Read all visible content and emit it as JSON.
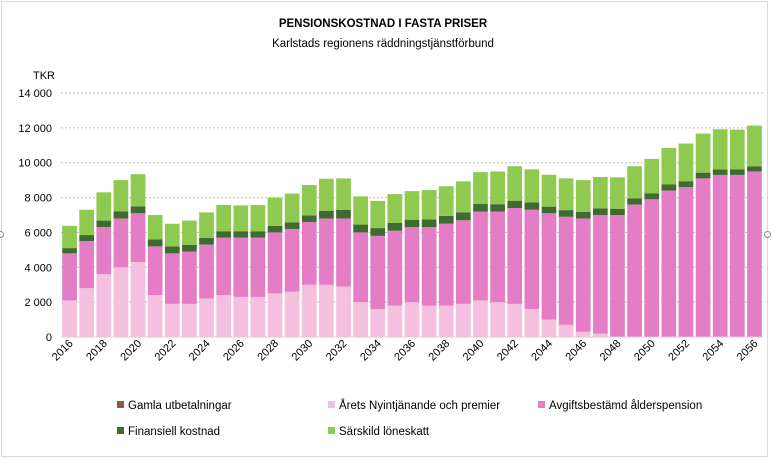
{
  "chart_data": {
    "type": "bar",
    "stacked": true,
    "title": "PENSIONSKOSTNAD I FASTA PRISER",
    "subtitle": "Karlstads regionens räddningstjänstförbund",
    "ylabel": "TKR",
    "xlabel": "",
    "ylim": [
      0,
      14000
    ],
    "yticks": [
      0,
      2000,
      4000,
      6000,
      8000,
      10000,
      12000,
      14000
    ],
    "ytick_labels": [
      "0",
      "2 000",
      "4 000",
      "6 000",
      "8 000",
      "10 000",
      "12 000",
      "14 000"
    ],
    "grid": true,
    "legend_position": "bottom",
    "categories": [
      "2016",
      "2017",
      "2018",
      "2019",
      "2020",
      "2021",
      "2022",
      "2023",
      "2024",
      "2025",
      "2026",
      "2027",
      "2028",
      "2029",
      "2030",
      "2031",
      "2032",
      "2033",
      "2034",
      "2035",
      "2036",
      "2037",
      "2038",
      "2039",
      "2040",
      "2041",
      "2042",
      "2043",
      "2044",
      "2045",
      "2046",
      "2047",
      "2048",
      "2049",
      "2050",
      "2051",
      "2052",
      "2053",
      "2054",
      "2055",
      "2056"
    ],
    "xtick_labels": [
      "2016",
      "2018",
      "2020",
      "2022",
      "2024",
      "2026",
      "2028",
      "2030",
      "2032",
      "2034",
      "2036",
      "2038",
      "2040",
      "2042",
      "2044",
      "2046",
      "2048",
      "2050",
      "2052",
      "2054",
      "2056"
    ],
    "series": [
      {
        "name": "Gamla utbetalningar",
        "color": "#8c5a46",
        "values": [
          0,
          0,
          0,
          0,
          0,
          0,
          0,
          0,
          0,
          0,
          0,
          0,
          0,
          0,
          0,
          0,
          0,
          0,
          0,
          0,
          0,
          0,
          0,
          0,
          0,
          0,
          0,
          0,
          0,
          0,
          0,
          0,
          0,
          0,
          0,
          0,
          0,
          0,
          0,
          0,
          0
        ]
      },
      {
        "name": "Årets Nyintjänande och premier",
        "color": "#f5bfdf",
        "values": [
          2100,
          2800,
          3600,
          4000,
          4300,
          2400,
          1900,
          1900,
          2200,
          2400,
          2300,
          2300,
          2500,
          2600,
          3000,
          3000,
          2900,
          2000,
          1600,
          1800,
          2000,
          1800,
          1800,
          1900,
          2100,
          2000,
          1900,
          1600,
          1000,
          700,
          300,
          200,
          0,
          0,
          0,
          0,
          0,
          0,
          0,
          0,
          0
        ]
      },
      {
        "name": "Avgiftsbestämd ålderspension",
        "color": "#e57cc6",
        "values": [
          2700,
          2700,
          2700,
          2800,
          2800,
          2800,
          2900,
          3000,
          3100,
          3300,
          3400,
          3400,
          3500,
          3600,
          3600,
          3800,
          3900,
          4000,
          4200,
          4300,
          4300,
          4500,
          4700,
          4800,
          5100,
          5200,
          5500,
          5700,
          6100,
          6200,
          6500,
          6800,
          7000,
          7600,
          7900,
          8400,
          8600,
          9100,
          9300,
          9300,
          9500
        ]
      },
      {
        "name": "Finansiell kostnad",
        "color": "#3f6b30",
        "values": [
          300,
          350,
          380,
          400,
          400,
          400,
          400,
          380,
          380,
          370,
          370,
          370,
          380,
          380,
          380,
          430,
          500,
          450,
          450,
          450,
          430,
          450,
          450,
          450,
          430,
          420,
          420,
          420,
          380,
          380,
          380,
          380,
          360,
          360,
          350,
          350,
          340,
          330,
          320,
          310,
          300
        ]
      },
      {
        "name": "Särskild löneskatt",
        "color": "#8ec950",
        "values": [
          1280,
          1450,
          1620,
          1800,
          1840,
          1400,
          1300,
          1400,
          1470,
          1500,
          1480,
          1500,
          1620,
          1650,
          1740,
          1850,
          1800,
          1620,
          1560,
          1650,
          1640,
          1680,
          1700,
          1780,
          1830,
          1880,
          1980,
          1900,
          1830,
          1820,
          1820,
          1800,
          1800,
          1840,
          1970,
          2100,
          2160,
          2240,
          2300,
          2290,
          2330
        ]
      }
    ]
  }
}
